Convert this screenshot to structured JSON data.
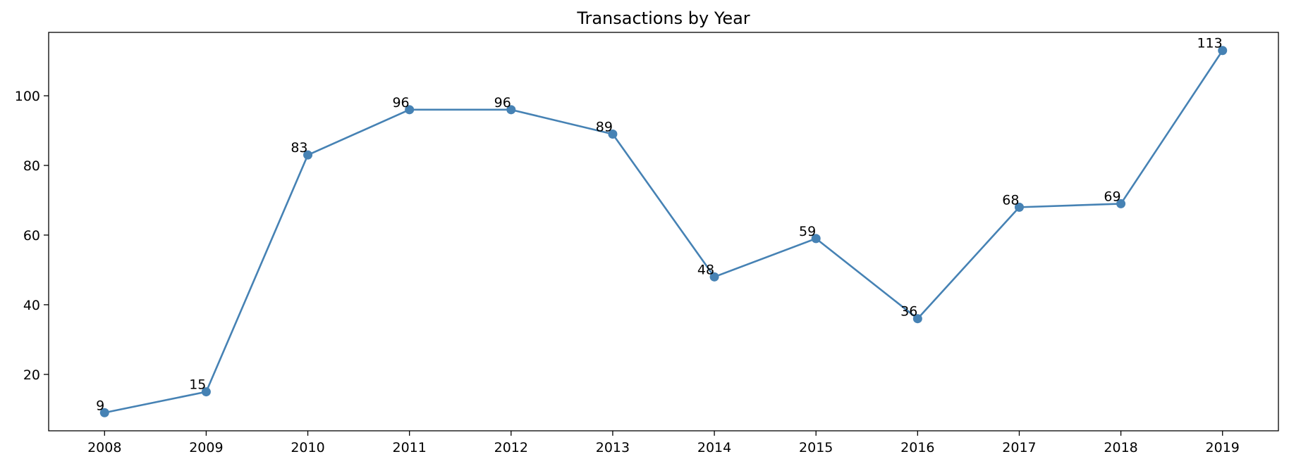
{
  "chart_data": {
    "type": "line",
    "title": "Transactions by Year",
    "xlabel": "",
    "ylabel": "",
    "categories": [
      "2008",
      "2009",
      "2010",
      "2011",
      "2012",
      "2013",
      "2014",
      "2015",
      "2016",
      "2017",
      "2018",
      "2019"
    ],
    "series": [
      {
        "values": [
          9,
          15,
          83,
          96,
          96,
          89,
          48,
          59,
          36,
          68,
          69,
          113
        ],
        "color": "#4682b4",
        "marker": "circle"
      }
    ],
    "ylim": [
      3.8,
      118.2
    ],
    "yticks": [
      20,
      40,
      60,
      80,
      100
    ],
    "grid": false,
    "legend": "none",
    "data_labels": true
  }
}
